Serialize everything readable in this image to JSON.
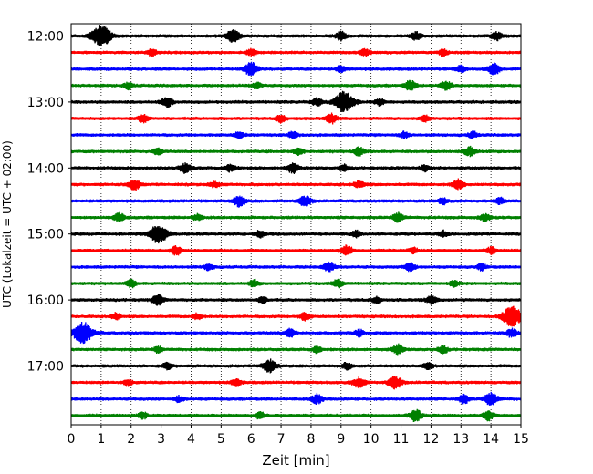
{
  "chart_data": {
    "type": "line",
    "title": "",
    "xlabel": "Zeit  [min]",
    "ylabel": "UTC (Lokalzeit = UTC + 02:00)",
    "xlim": [
      0,
      15
    ],
    "x_ticks": [
      0,
      1,
      2,
      3,
      4,
      5,
      6,
      7,
      8,
      9,
      10,
      11,
      12,
      13,
      14,
      15
    ],
    "y_tick_labels": [
      "12:00",
      "13:00",
      "14:00",
      "15:00",
      "16:00",
      "17:00"
    ],
    "y_tick_rows": [
      0,
      4,
      8,
      12,
      16,
      20
    ],
    "vertical_grid": "dotted, every 1 min",
    "trace_colors": [
      "#000000",
      "#ff0000",
      "#0000ff",
      "#008000"
    ],
    "traces": [
      {
        "start": "12:00",
        "events": [
          [
            1.0,
            1.0
          ],
          [
            5.4,
            0.6
          ],
          [
            9.0,
            0.4
          ],
          [
            11.5,
            0.35
          ],
          [
            14.2,
            0.4
          ]
        ]
      },
      {
        "start": "12:15",
        "events": [
          [
            2.7,
            0.3
          ],
          [
            6.0,
            0.3
          ],
          [
            9.8,
            0.35
          ],
          [
            12.4,
            0.3
          ]
        ]
      },
      {
        "start": "12:30",
        "events": [
          [
            6.0,
            0.6
          ],
          [
            9.0,
            0.3
          ],
          [
            13.0,
            0.3
          ],
          [
            14.1,
            0.5
          ]
        ]
      },
      {
        "start": "12:45",
        "events": [
          [
            1.9,
            0.3
          ],
          [
            6.2,
            0.3
          ],
          [
            11.3,
            0.45
          ],
          [
            12.5,
            0.4
          ]
        ]
      },
      {
        "start": "13:00",
        "events": [
          [
            3.2,
            0.45
          ],
          [
            8.2,
            0.35
          ],
          [
            9.1,
            1.0
          ],
          [
            10.3,
            0.3
          ]
        ]
      },
      {
        "start": "13:15",
        "events": [
          [
            2.4,
            0.35
          ],
          [
            7.0,
            0.35
          ],
          [
            8.7,
            0.45
          ],
          [
            11.8,
            0.3
          ]
        ]
      },
      {
        "start": "13:30",
        "events": [
          [
            5.6,
            0.3
          ],
          [
            7.4,
            0.3
          ],
          [
            11.1,
            0.3
          ],
          [
            13.4,
            0.3
          ]
        ]
      },
      {
        "start": "13:45",
        "events": [
          [
            2.9,
            0.3
          ],
          [
            7.6,
            0.3
          ],
          [
            9.6,
            0.4
          ],
          [
            13.3,
            0.45
          ]
        ]
      },
      {
        "start": "14:00",
        "events": [
          [
            3.8,
            0.45
          ],
          [
            5.3,
            0.35
          ],
          [
            7.4,
            0.45
          ],
          [
            9.1,
            0.3
          ],
          [
            11.8,
            0.3
          ]
        ]
      },
      {
        "start": "14:15",
        "events": [
          [
            2.1,
            0.5
          ],
          [
            4.8,
            0.3
          ],
          [
            9.6,
            0.35
          ],
          [
            12.9,
            0.45
          ]
        ]
      },
      {
        "start": "14:30",
        "events": [
          [
            5.6,
            0.5
          ],
          [
            7.8,
            0.5
          ],
          [
            12.4,
            0.3
          ],
          [
            14.3,
            0.3
          ]
        ]
      },
      {
        "start": "14:45",
        "events": [
          [
            1.6,
            0.4
          ],
          [
            4.2,
            0.3
          ],
          [
            10.9,
            0.45
          ],
          [
            13.8,
            0.35
          ]
        ]
      },
      {
        "start": "15:00",
        "events": [
          [
            2.9,
            0.9
          ],
          [
            6.3,
            0.3
          ],
          [
            9.5,
            0.3
          ],
          [
            12.4,
            0.3
          ]
        ]
      },
      {
        "start": "15:15",
        "events": [
          [
            3.5,
            0.4
          ],
          [
            9.2,
            0.45
          ],
          [
            11.4,
            0.3
          ],
          [
            14.0,
            0.3
          ]
        ]
      },
      {
        "start": "15:30",
        "events": [
          [
            4.6,
            0.3
          ],
          [
            8.6,
            0.45
          ],
          [
            11.3,
            0.4
          ],
          [
            13.7,
            0.3
          ]
        ]
      },
      {
        "start": "15:45",
        "events": [
          [
            2.0,
            0.35
          ],
          [
            6.1,
            0.3
          ],
          [
            8.9,
            0.35
          ],
          [
            12.8,
            0.3
          ]
        ]
      },
      {
        "start": "16:00",
        "events": [
          [
            2.9,
            0.45
          ],
          [
            6.4,
            0.3
          ],
          [
            10.2,
            0.3
          ],
          [
            12.0,
            0.4
          ]
        ]
      },
      {
        "start": "16:15",
        "events": [
          [
            1.5,
            0.3
          ],
          [
            4.2,
            0.3
          ],
          [
            7.8,
            0.35
          ],
          [
            14.7,
            1.0
          ]
        ]
      },
      {
        "start": "16:30",
        "events": [
          [
            0.4,
            1.0
          ],
          [
            7.3,
            0.4
          ],
          [
            9.6,
            0.3
          ],
          [
            14.7,
            0.4
          ]
        ]
      },
      {
        "start": "16:45",
        "events": [
          [
            2.9,
            0.3
          ],
          [
            8.2,
            0.3
          ],
          [
            10.9,
            0.45
          ],
          [
            12.4,
            0.35
          ]
        ]
      },
      {
        "start": "17:00",
        "events": [
          [
            3.2,
            0.3
          ],
          [
            6.6,
            0.6
          ],
          [
            9.2,
            0.3
          ],
          [
            11.9,
            0.3
          ]
        ]
      },
      {
        "start": "17:15",
        "events": [
          [
            1.9,
            0.3
          ],
          [
            5.5,
            0.35
          ],
          [
            9.6,
            0.5
          ],
          [
            10.8,
            0.6
          ]
        ]
      },
      {
        "start": "17:30",
        "events": [
          [
            3.6,
            0.3
          ],
          [
            8.2,
            0.45
          ],
          [
            13.1,
            0.4
          ],
          [
            14.0,
            0.6
          ]
        ]
      },
      {
        "start": "17:45",
        "events": [
          [
            2.4,
            0.3
          ],
          [
            6.3,
            0.3
          ],
          [
            11.5,
            0.55
          ],
          [
            13.9,
            0.45
          ]
        ]
      }
    ]
  }
}
